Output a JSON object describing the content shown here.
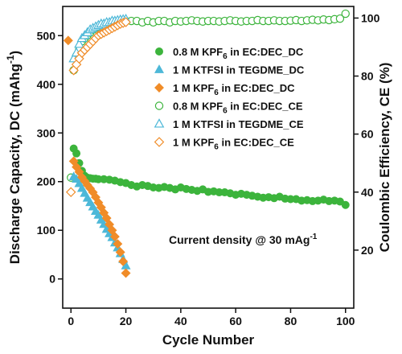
{
  "chart_data": {
    "type": "scatter",
    "xlabel": "Cycle Number",
    "ylabel_left": "Discharge Capacity, DC (mAhg",
    "ylabel_left_sup": "-1",
    "ylabel_left_end": ")",
    "ylabel_right": "Coulombic Efficiency, CE (%)",
    "xlim": [
      -3,
      103
    ],
    "ylim_left": [
      -60,
      560
    ],
    "ylim_right": [
      0,
      104
    ],
    "x_ticks": [
      0,
      20,
      40,
      60,
      80,
      100
    ],
    "y_left_ticks": [
      0,
      100,
      200,
      300,
      400,
      500
    ],
    "y_right_ticks": [
      20,
      40,
      60,
      80,
      100
    ],
    "annotation": {
      "text": "Current density @ 30 mAg",
      "sup": "-1"
    },
    "legend_position": "right",
    "series": [
      {
        "name": "0.8 M KPF6 in EC:DEC_DC",
        "label_parts": [
          "0.8 M KPF",
          "6",
          " in EC:DEC_DC"
        ],
        "axis": "left",
        "marker": "circle",
        "filled": true,
        "color": "#3cb43c",
        "x": [
          1,
          2,
          3,
          4,
          5,
          6,
          7,
          8,
          9,
          10,
          12,
          14,
          16,
          18,
          20,
          22,
          24,
          26,
          28,
          30,
          32,
          34,
          36,
          38,
          40,
          42,
          44,
          46,
          48,
          50,
          52,
          54,
          56,
          58,
          60,
          62,
          64,
          66,
          68,
          70,
          72,
          74,
          76,
          78,
          80,
          82,
          84,
          86,
          88,
          90,
          92,
          94,
          96,
          98,
          100
        ],
        "y": [
          268,
          258,
          238,
          222,
          212,
          208,
          207,
          206,
          206,
          205,
          205,
          204,
          202,
          199,
          197,
          193,
          190,
          193,
          191,
          188,
          187,
          189,
          187,
          184,
          188,
          185,
          183,
          181,
          184,
          179,
          180,
          178,
          178,
          176,
          173,
          175,
          173,
          171,
          169,
          167,
          168,
          166,
          169,
          165,
          164,
          164,
          161,
          162,
          160,
          161,
          163,
          160,
          161,
          159,
          152
        ]
      },
      {
        "name": "1 M KTFSI in TEGDME_DC",
        "label_parts": [
          "1 M KTFSI in TEGDME_DC"
        ],
        "axis": "left",
        "marker": "triangle",
        "filled": true,
        "color": "#4db8d8",
        "x": [
          1,
          2,
          3,
          4,
          5,
          6,
          7,
          8,
          9,
          10,
          11,
          12,
          13,
          14,
          15,
          16,
          17,
          18,
          19,
          20
        ],
        "y": [
          210,
          205,
          196,
          186,
          176,
          166,
          157,
          148,
          139,
          131,
          121,
          112,
          102,
          93,
          85,
          74,
          64,
          52,
          40,
          27
        ]
      },
      {
        "name": "1 M KPF6 in EC:DEC_DC",
        "label_parts": [
          "1 M KPF",
          "6",
          " in EC:DEC_DC"
        ],
        "axis": "left",
        "marker": "diamond",
        "filled": true,
        "color": "#f08c28",
        "x": [
          1,
          2,
          3,
          4,
          5,
          6,
          7,
          8,
          9,
          10,
          11,
          12,
          13,
          14,
          15,
          16,
          17,
          18,
          19,
          20
        ],
        "y": [
          242,
          230,
          220,
          209,
          201,
          193,
          186,
          178,
          168,
          157,
          147,
          136,
          125,
          112,
          100,
          87,
          72,
          55,
          36,
          12
        ]
      },
      {
        "name": "0.8 M KPF6 in EC:DEC_CE",
        "label_parts": [
          "0.8 M KPF",
          "6",
          " in EC:DEC_CE"
        ],
        "axis": "right",
        "marker": "circle",
        "filled": false,
        "color": "#3cb43c",
        "x": [
          0,
          1,
          2,
          3,
          4,
          5,
          6,
          7,
          8,
          9,
          10,
          12,
          14,
          16,
          18,
          20,
          22,
          24,
          26,
          28,
          30,
          32,
          34,
          36,
          38,
          40,
          42,
          44,
          46,
          48,
          50,
          52,
          54,
          56,
          58,
          60,
          62,
          64,
          66,
          68,
          70,
          72,
          74,
          76,
          78,
          80,
          82,
          84,
          86,
          88,
          90,
          92,
          94,
          96,
          98,
          100
        ],
        "y": [
          45,
          82,
          87,
          89,
          92,
          93,
          94,
          95,
          96,
          96.5,
          97,
          97.5,
          98,
          98.5,
          98.5,
          99,
          99,
          99,
          98.5,
          99,
          98.5,
          99,
          99,
          98.5,
          99,
          98.8,
          99,
          99.2,
          99,
          98.8,
          99,
          99,
          98.8,
          99,
          99.2,
          99,
          98.8,
          99,
          99,
          99.3,
          99,
          99,
          99.2,
          99,
          99,
          99.1,
          99.3,
          99,
          99.2,
          99.4,
          99.2,
          99.5,
          99.3,
          99.6,
          99.8,
          101.5
        ]
      },
      {
        "name": "1 M KTFSI in TEGDME_CE",
        "label_parts": [
          "1 M KTFSI in TEGDME_CE"
        ],
        "axis": "right",
        "marker": "triangle",
        "filled": false,
        "color": "#4db8d8",
        "x": [
          1,
          2,
          3,
          4,
          5,
          6,
          7,
          8,
          9,
          10,
          11,
          12,
          13,
          14,
          15,
          16,
          17,
          18,
          19,
          20
        ],
        "y": [
          86,
          88,
          91,
          93,
          94,
          95,
          96,
          96.5,
          97,
          97.5,
          98,
          98,
          98.5,
          98.5,
          99,
          99,
          99.2,
          99.4,
          99.5,
          99.6
        ]
      },
      {
        "name": "1 M KPF6 in EC:DEC_CE",
        "label_parts": [
          "1 M KPF",
          "6",
          " in EC:DEC_CE"
        ],
        "axis": "right",
        "marker": "diamond",
        "filled": false,
        "color": "#f08c28",
        "x": [
          0,
          1,
          2,
          3,
          4,
          5,
          6,
          7,
          8,
          9,
          10,
          11,
          12,
          13,
          14,
          15,
          16,
          17,
          18,
          19,
          20
        ],
        "y": [
          40,
          82,
          84,
          86,
          88,
          89,
          90,
          91,
          92,
          93,
          94,
          94.5,
          95,
          95.5,
          96,
          96.5,
          97,
          97.5,
          98,
          98.3,
          98.6
        ]
      }
    ],
    "extra_marker": {
      "series": "1 M KPF6 in EC:DEC_DC",
      "x": -1,
      "y": 490
    }
  }
}
